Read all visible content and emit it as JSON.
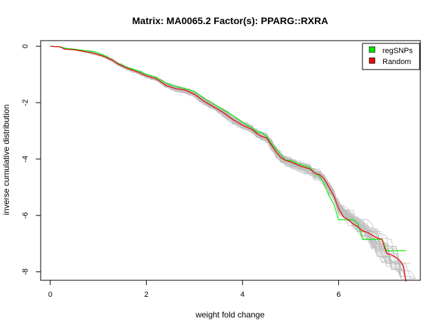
{
  "chart_data": {
    "type": "line",
    "title": "Matrix: MA0065.2 Factor(s): PPARG::RXRA",
    "xlabel": "weight fold change",
    "ylabel": "inverse cumulative distribution",
    "xlim": [
      -0.2,
      7.7
    ],
    "ylim": [
      -8.3,
      0.2
    ],
    "x_ticks": [
      0,
      2,
      4,
      6
    ],
    "y_ticks": [
      0,
      -2,
      -4,
      -6,
      -8
    ],
    "grid": false,
    "legend_position": "top-right",
    "legend": [
      {
        "label": "regSNPs",
        "color": "#00ee00"
      },
      {
        "label": "Random",
        "color": "#ee0000"
      }
    ],
    "background_series_color": "#bebebe",
    "series": [
      {
        "name": "regSNPs",
        "color": "#00ee00",
        "x": [
          0,
          0.2,
          0.35,
          0.5,
          0.7,
          0.9,
          1.1,
          1.3,
          1.4,
          1.6,
          1.8,
          2.0,
          2.2,
          2.4,
          2.6,
          2.8,
          3.0,
          3.2,
          3.4,
          3.6,
          3.8,
          4.0,
          4.2,
          4.3,
          4.4,
          4.5,
          4.6,
          4.7,
          4.8,
          4.9,
          5.0,
          5.2,
          5.4,
          5.5,
          5.6,
          5.7,
          5.8,
          5.9,
          6.0,
          6.2,
          6.3,
          6.4,
          6.5,
          6.6,
          6.8,
          6.9,
          7.0,
          7.2,
          7.4
        ],
        "y": [
          0,
          -0.02,
          -0.08,
          -0.1,
          -0.15,
          -0.18,
          -0.3,
          -0.5,
          -0.6,
          -0.75,
          -0.85,
          -1.0,
          -1.1,
          -1.3,
          -1.42,
          -1.5,
          -1.6,
          -1.85,
          -2.05,
          -2.25,
          -2.45,
          -2.7,
          -2.9,
          -3.05,
          -3.05,
          -3.2,
          -3.45,
          -3.65,
          -3.85,
          -4.05,
          -4.05,
          -4.2,
          -4.3,
          -4.5,
          -4.6,
          -4.9,
          -5.3,
          -5.6,
          -6.15,
          -6.15,
          -6.15,
          -6.3,
          -6.85,
          -6.85,
          -6.85,
          -6.85,
          -7.25,
          -7.25,
          -7.25
        ]
      },
      {
        "name": "Random",
        "color": "#ee0000",
        "x": [
          0,
          0.2,
          0.3,
          0.5,
          0.7,
          0.9,
          1.1,
          1.3,
          1.4,
          1.6,
          1.8,
          2.0,
          2.2,
          2.4,
          2.6,
          2.8,
          3.0,
          3.2,
          3.4,
          3.6,
          3.8,
          4.0,
          4.2,
          4.3,
          4.4,
          4.5,
          4.6,
          4.7,
          4.8,
          4.9,
          5.0,
          5.2,
          5.4,
          5.5,
          5.6,
          5.7,
          5.8,
          5.9,
          6.0,
          6.1,
          6.2,
          6.3,
          6.4,
          6.5,
          6.6,
          6.7,
          6.8,
          6.9,
          7.0,
          7.1,
          7.2,
          7.3,
          7.35,
          7.4
        ],
        "y": [
          0,
          -0.02,
          -0.1,
          -0.12,
          -0.18,
          -0.25,
          -0.35,
          -0.5,
          -0.62,
          -0.78,
          -0.9,
          -1.05,
          -1.15,
          -1.38,
          -1.5,
          -1.55,
          -1.7,
          -1.95,
          -2.15,
          -2.35,
          -2.6,
          -2.8,
          -2.95,
          -3.1,
          -3.2,
          -3.25,
          -3.5,
          -3.75,
          -3.95,
          -4.05,
          -4.1,
          -4.25,
          -4.35,
          -4.5,
          -4.55,
          -4.7,
          -5.0,
          -5.3,
          -5.75,
          -6.05,
          -6.15,
          -6.3,
          -6.4,
          -6.55,
          -6.6,
          -6.7,
          -6.8,
          -6.85,
          -7.35,
          -7.4,
          -7.5,
          -7.65,
          -7.8,
          -8.35
        ]
      }
    ]
  }
}
